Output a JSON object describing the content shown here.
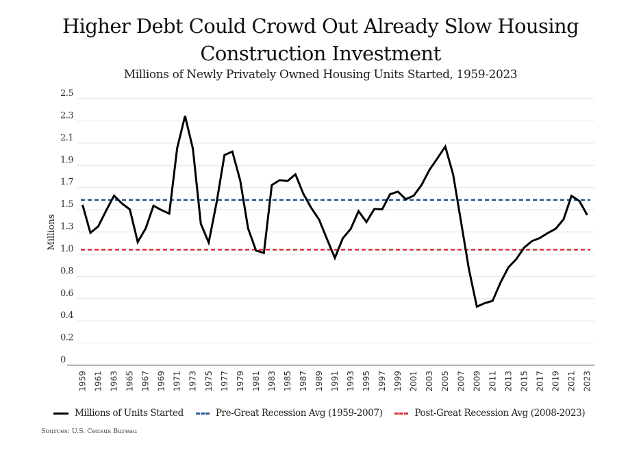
{
  "chart_data": {
    "type": "line",
    "title": "Higher Debt Could Crowd Out Already Slow Housing Construction Investment",
    "title_lines": [
      "Higher Debt Could Crowd Out Already Slow Housing",
      "Construction Investment"
    ],
    "subtitle": "Millions of Newly Privately Owned Housing Units Started, 1959-2023",
    "xlabel": "",
    "ylabel": "Millions",
    "ylim": [
      0,
      2.52
    ],
    "y_ticks": [
      0,
      0.21,
      0.42,
      0.63,
      0.84,
      1.05,
      1.26,
      1.47,
      1.68,
      1.89,
      2.1,
      2.31,
      2.52
    ],
    "y_tick_labels": [
      "0",
      "0.2",
      "0.4",
      "0.6",
      "0.8",
      "1.0",
      "1.3",
      "1.5",
      "1.7",
      "1.9",
      "2.1",
      "2.3",
      "2.5"
    ],
    "grid": true,
    "x": [
      1959,
      1960,
      1961,
      1962,
      1963,
      1964,
      1965,
      1966,
      1967,
      1968,
      1969,
      1970,
      1971,
      1972,
      1973,
      1974,
      1975,
      1976,
      1977,
      1978,
      1979,
      1980,
      1981,
      1982,
      1983,
      1984,
      1985,
      1986,
      1987,
      1988,
      1989,
      1990,
      1991,
      1992,
      1993,
      1994,
      1995,
      1996,
      1997,
      1998,
      1999,
      2000,
      2001,
      2002,
      2003,
      2004,
      2005,
      2006,
      2007,
      2008,
      2009,
      2010,
      2011,
      2012,
      2013,
      2014,
      2015,
      2016,
      2017,
      2018,
      2019,
      2020,
      2021,
      2022,
      2023
    ],
    "x_tick_labels": [
      "1959",
      "1961",
      "1963",
      "1965",
      "1967",
      "1969",
      "1971",
      "1973",
      "1975",
      "1977",
      "1979",
      "1981",
      "1983",
      "1985",
      "1987",
      "1989",
      "1991",
      "1993",
      "1995",
      "1997",
      "1999",
      "2001",
      "2003",
      "2005",
      "2007",
      "2009",
      "2011",
      "2013",
      "2015",
      "2017",
      "2019",
      "2021",
      "2023"
    ],
    "series": [
      {
        "name": "Millions of Units Started",
        "style": "solid",
        "color": "#000000",
        "values": [
          1.517,
          1.252,
          1.313,
          1.463,
          1.603,
          1.529,
          1.473,
          1.165,
          1.292,
          1.508,
          1.467,
          1.434,
          2.052,
          2.357,
          2.045,
          1.338,
          1.16,
          1.538,
          1.987,
          2.02,
          1.745,
          1.292,
          1.084,
          1.062,
          1.703,
          1.75,
          1.742,
          1.805,
          1.621,
          1.488,
          1.376,
          1.193,
          1.014,
          1.2,
          1.288,
          1.457,
          1.354,
          1.477,
          1.474,
          1.617,
          1.641,
          1.569,
          1.603,
          1.705,
          1.848,
          1.956,
          2.068,
          1.801,
          1.355,
          0.906,
          0.554,
          0.587,
          0.609,
          0.781,
          0.925,
          1.003,
          1.112,
          1.174,
          1.203,
          1.25,
          1.29,
          1.38,
          1.601,
          1.553,
          1.42
        ]
      },
      {
        "name": "Pre-Great Recession Avg (1959-2007)",
        "style": "dashed",
        "color": "#2f5b93",
        "value": 1.563
      },
      {
        "name": "Post-Great Recession Avg (2008-2023)",
        "style": "dashed",
        "color": "#e0303a",
        "value": 1.093
      }
    ],
    "legend_position": "bottom-left"
  },
  "source": "Sources: U.S. Census Bureau"
}
